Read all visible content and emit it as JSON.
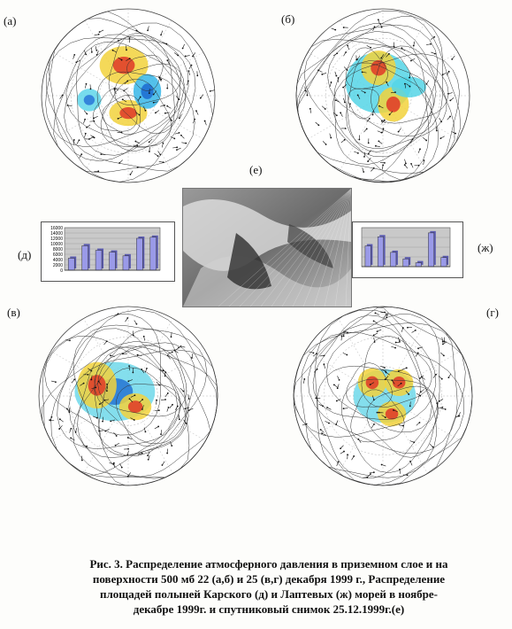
{
  "panels": {
    "a": {
      "label": "(а)"
    },
    "b": {
      "label": "(б)"
    },
    "v": {
      "label": "(в)"
    },
    "g": {
      "label": "(г)"
    },
    "e": {
      "label": "(е)"
    },
    "d": {
      "label": "(д)"
    },
    "zh": {
      "label": "(ж)"
    }
  },
  "chart_data": [
    {
      "type": "bar",
      "id": "d",
      "yticks": [
        "16000",
        "14000",
        "12000",
        "10000",
        "8000",
        "6000",
        "4000",
        "2000",
        "0"
      ],
      "ylim": [
        0,
        16000
      ],
      "values": [
        4500,
        9200,
        7500,
        6800,
        5400,
        12000,
        12400
      ]
    },
    {
      "type": "bar",
      "id": "zh",
      "ylim": [
        0,
        3000
      ],
      "values": [
        1600,
        2300,
        1100,
        600,
        300,
        2600,
        700
      ]
    }
  ],
  "caption": {
    "line1": "Рис. 3. Распределение атмосферного давления в приземном слое и на",
    "line2": "поверхности 500 мб 22 (а,б) и 25 (в,г) декабря 1999 г., Распределение",
    "line3": "площадей полыней Карского (д) и Лаптевых (ж) морей в ноябре-",
    "line4": "декабре 1999г. и  спутниковый снимок 25.12.1999г.(е)"
  }
}
